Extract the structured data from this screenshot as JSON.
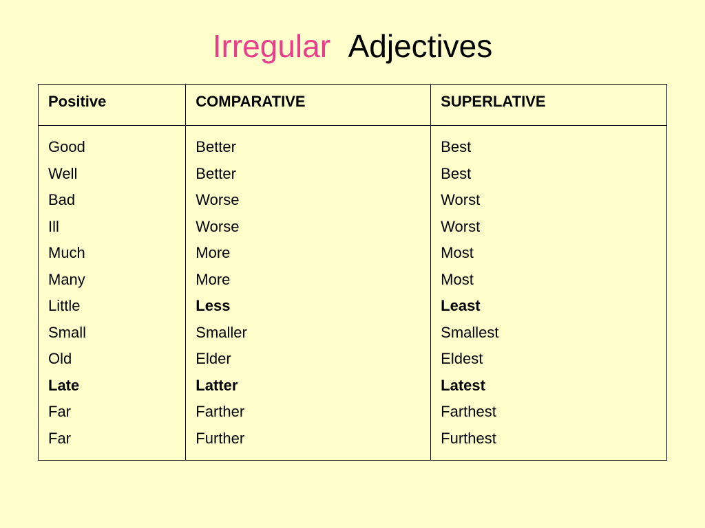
{
  "title": {
    "word1": "Irregular",
    "word2": "Adjectives",
    "word1_color": "#e83e8c",
    "word2_color": "#000000"
  },
  "table": {
    "background_color": "#ffffcc",
    "border_color": "#000000",
    "header_fontsize": 22,
    "cell_fontsize": 22,
    "columns": [
      {
        "label": "Positive"
      },
      {
        "label": "COMPARATIVE",
        "upper": true
      },
      {
        "label": "SUPERLATIVE",
        "upper": true
      }
    ],
    "rows": [
      {
        "positive": "Good",
        "comparative": "Better",
        "superlative": "Best"
      },
      {
        "positive": "Well",
        "comparative": "Better",
        "superlative": "Best"
      },
      {
        "positive": "Bad",
        "comparative": "Worse",
        "superlative": "Worst"
      },
      {
        "positive": "Ill",
        "comparative": "Worse",
        "superlative": "Worst"
      },
      {
        "positive": "Much",
        "comparative": "More",
        "superlative": "Most"
      },
      {
        "positive": "Many",
        "comparative": "More",
        "superlative": "Most"
      },
      {
        "positive": "Little",
        "comparative": "Less",
        "superlative": "Least",
        "bold": true
      },
      {
        "positive": "Small",
        "comparative": "Smaller",
        "superlative": "Smallest"
      },
      {
        "positive": "Old",
        "comparative": "Elder",
        "superlative": "Eldest"
      },
      {
        "positive": "Late",
        "comparative": "Latter",
        "superlative": "Latest",
        "bold": true
      },
      {
        "positive": "Far",
        "comparative": "Farther",
        "superlative": "Farthest"
      },
      {
        "positive": "Far",
        "comparative": "Further",
        "superlative": "Furthest"
      }
    ]
  }
}
